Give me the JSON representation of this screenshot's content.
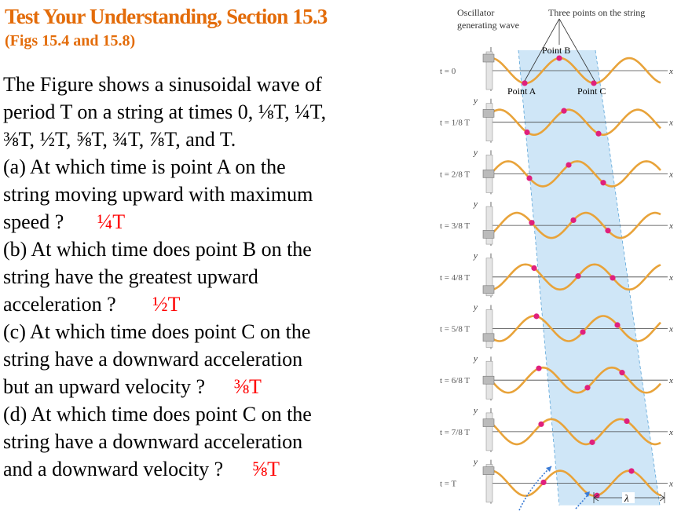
{
  "title": "Test Your Understanding, Section 15.3",
  "subtitle": "(Figs 15.4 and 15.8)",
  "intro": {
    "line1": "The Figure shows a sinusoidal wave of",
    "line2": "period T on a string at times 0, ⅛T, ¼T,",
    "line3": "⅜T, ½T, ⅝T, ¾T, ⅞T, and T."
  },
  "questions": [
    {
      "lines": [
        "(a) At which time is point A on the",
        "string moving upward with maximum",
        "speed ?"
      ],
      "answer": "¼T"
    },
    {
      "lines": [
        "(b) At which time does point B on the",
        "string have the greatest upward",
        "acceleration ?"
      ],
      "answer": "½T"
    },
    {
      "lines": [
        "(c) At which time does point C on the",
        "string have a downward acceleration",
        "but an upward velocity ?"
      ],
      "answer": "⅜T"
    },
    {
      "lines": [
        "(d) At which time does point C on the",
        "string have a downward acceleration",
        "and a downward velocity ?"
      ],
      "answer": "⅝T"
    }
  ],
  "figure": {
    "oscillator_label_1": "Oscillator",
    "oscillator_label_2": "generating wave",
    "points_label": "Three points on the string",
    "point_a": "Point A",
    "point_b": "Point B",
    "point_c": "Point C",
    "time_labels": [
      "t = 0",
      "t = 1/8 T",
      "t = 2/8 T",
      "t = 3/8 T",
      "t = 4/8 T",
      "t = 5/8 T",
      "t = 6/8 T",
      "t = 7/8 T",
      "t = T"
    ],
    "y_axis": "y",
    "x_axis": "x",
    "wavelength": "λ",
    "colors": {
      "title": "#e36c0a",
      "answer": "#ff0000",
      "wave": "#e8a33a",
      "point": "#e0207c",
      "band": "#cfe6f7"
    }
  }
}
